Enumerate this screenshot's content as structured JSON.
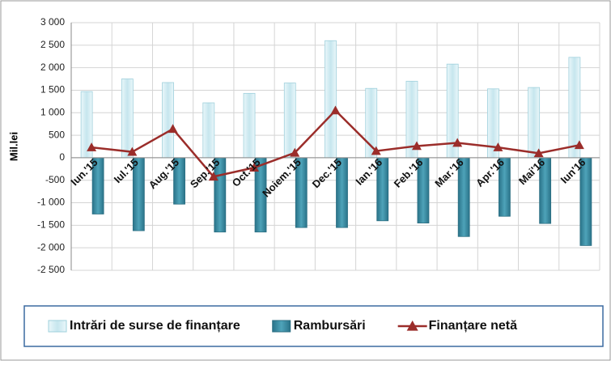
{
  "chart_data": {
    "type": "bar",
    "y_label": "Mil.lei",
    "categories": [
      "Iun.'15",
      "Iul.'15",
      "Aug.'15",
      "Sep.'15",
      "Oct.'15",
      "Noiem.'15",
      "Dec.'15",
      "Ian.'16",
      "Feb.'16",
      "Mar.'16",
      "Apr.'16",
      "Mai'16",
      "Iun'16"
    ],
    "series": [
      {
        "name": "Intrări de surse de finanțare",
        "type": "bar",
        "color": "#d6eef4",
        "values": [
          1470,
          1750,
          1670,
          1220,
          1430,
          1660,
          2600,
          1540,
          1700,
          2080,
          1530,
          1560,
          2230
        ]
      },
      {
        "name": "Rambursări",
        "type": "bar",
        "color": "#3c8fa6",
        "values": [
          -1250,
          -1620,
          -1030,
          -1650,
          -1650,
          -1550,
          -1550,
          -1400,
          -1450,
          -1750,
          -1300,
          -1460,
          -1950
        ]
      },
      {
        "name": "Finanțare netă",
        "type": "line",
        "color": "#9b2d2a",
        "values": [
          230,
          130,
          640,
          -420,
          -220,
          110,
          1050,
          150,
          260,
          330,
          230,
          100,
          280
        ]
      }
    ],
    "ylim": [
      -2500,
      3000
    ],
    "yticks": [
      {
        "value": -2500,
        "label": "-2 500"
      },
      {
        "value": -2000,
        "label": "-2 000"
      },
      {
        "value": -1500,
        "label": "-1 500"
      },
      {
        "value": -1000,
        "label": "-1 000"
      },
      -500,
      0,
      500,
      {
        "value": 1000,
        "label": "1 000"
      },
      {
        "value": 1500,
        "label": "1 500"
      },
      {
        "value": 2000,
        "label": "2 000"
      },
      {
        "value": 2500,
        "label": "2 500"
      },
      {
        "value": 3000,
        "label": "3 000"
      }
    ],
    "grid": true,
    "legend_position": "bottom"
  }
}
